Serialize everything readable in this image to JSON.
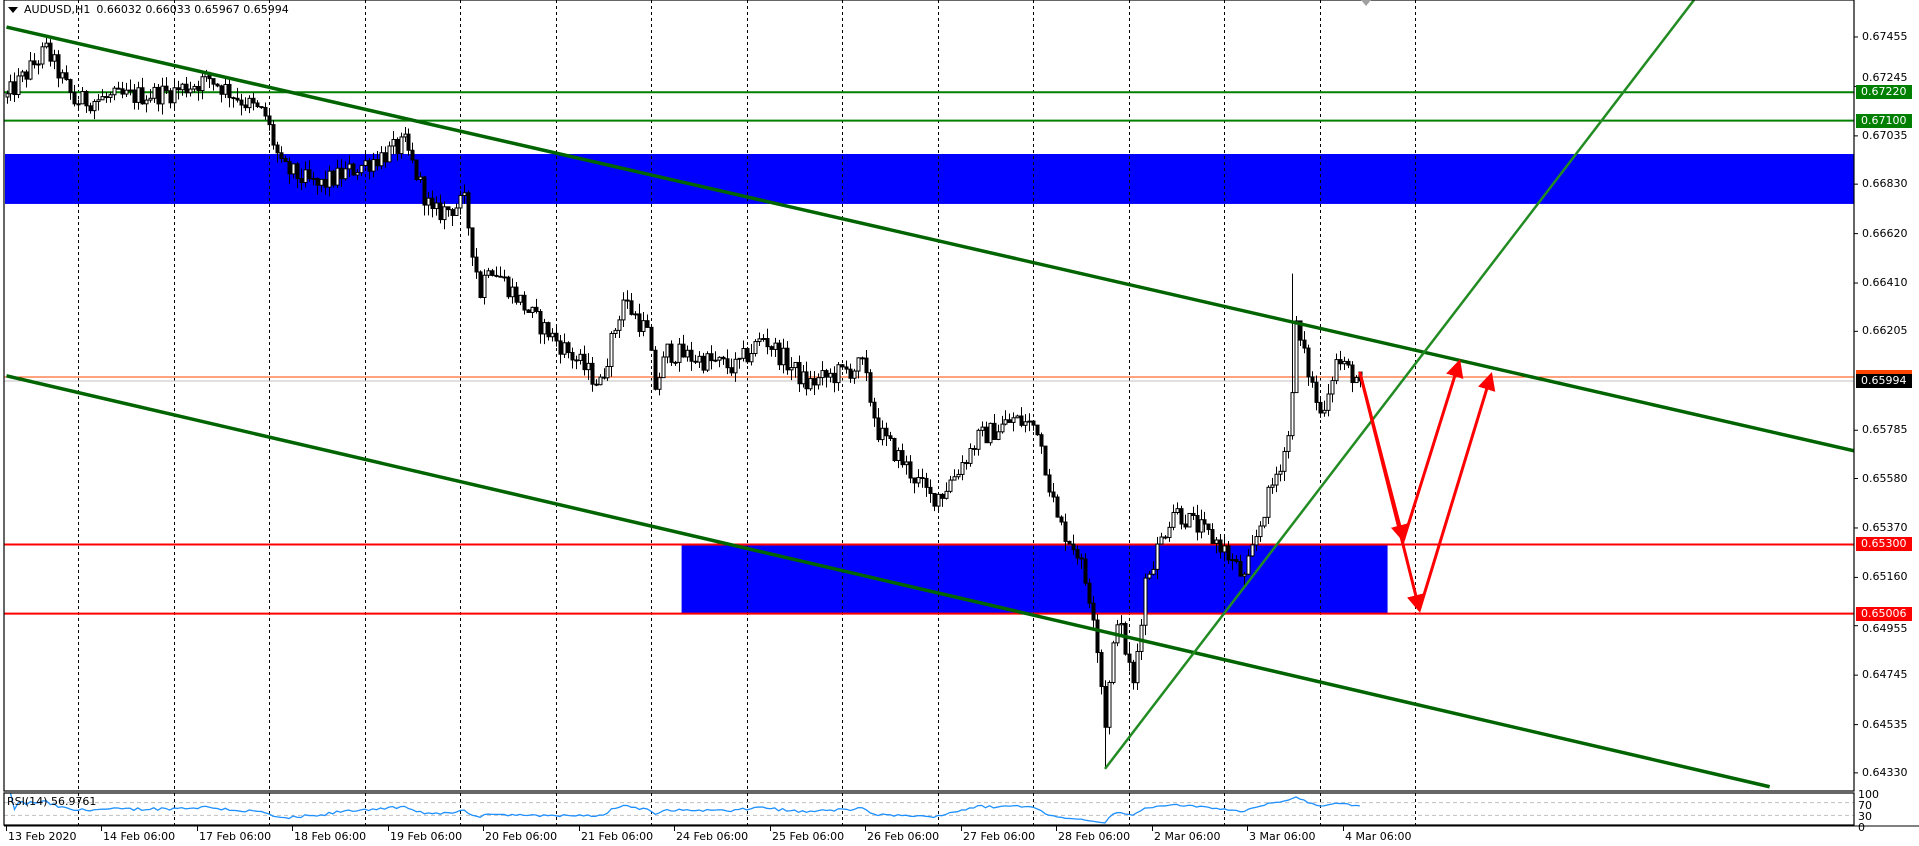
{
  "header": {
    "symbol": "AUDUSD,H1",
    "ohlc": "0.66032 0.66033 0.65967 0.65994"
  },
  "colors": {
    "background": "#ffffff",
    "zone": "#0000ff",
    "channel": "#006400",
    "uptrend": "#228b22",
    "support": "#ff0000",
    "resistance": "#008000",
    "ask": "#ff4500",
    "bid": "#c0c0c0",
    "rsi": "#1e90ff",
    "arrows": "#ff0000"
  },
  "price_axis": {
    "ticks": [
      "0.67455",
      "0.67245",
      "0.67035",
      "0.66830",
      "0.66620",
      "0.66410",
      "0.66205",
      "0.65785",
      "0.65580",
      "0.65370",
      "0.65160",
      "0.64955",
      "0.64745",
      "0.64535",
      "0.64330"
    ]
  },
  "levels": [
    {
      "price": 0.6722,
      "label": "0.67220",
      "color": "#008000"
    },
    {
      "price": 0.671,
      "label": "0.67100",
      "color": "#008000"
    },
    {
      "price": 0.653,
      "label": "0.65300",
      "color": "#ff0000"
    },
    {
      "price": 0.65006,
      "label": "0.65006",
      "color": "#ff0000"
    }
  ],
  "ask_line": {
    "price": 0.66011
  },
  "current_price": {
    "price": 0.65994,
    "label": "0.65994"
  },
  "zones": [
    {
      "from": "13 Feb 06:00",
      "to": "edge",
      "high": 0.66958,
      "low": 0.66746
    },
    {
      "from": "24 Feb 08:00",
      "to": "4 Mar 17:00",
      "high": 0.653,
      "low": 0.65006
    }
  ],
  "trendlines": [
    {
      "name": "upper-channel",
      "p1": [
        "13 Feb 06:00",
        0.67497
      ],
      "p2": [
        "3 Mar 18:00",
        0.66241
      ],
      "ray": true,
      "color": "#006400"
    },
    {
      "name": "lower-channel",
      "p1": [
        "13 Feb 06:00",
        0.66016
      ],
      "p2": [
        "10 Mar 17:00",
        0.64271
      ],
      "ray": false,
      "color": "#006400"
    },
    {
      "name": "uptrend",
      "p1": [
        "28 Feb 18:00",
        0.64347
      ],
      "p2": [
        "9 Mar 22:00",
        0.67612
      ],
      "ray": true,
      "color": "#228b22"
    }
  ],
  "arrows": [
    {
      "from": [
        "4 Mar 10:00",
        0.66033
      ],
      "to": [
        "4 Mar 21:00",
        0.65319
      ]
    },
    {
      "from": [
        "4 Mar 21:00",
        0.65319
      ],
      "to": [
        "5 Mar 11:00",
        0.66075
      ]
    },
    {
      "from": [
        "4 Mar 10:00",
        0.66033
      ],
      "to": [
        "5 Mar 01:00",
        0.65022
      ]
    },
    {
      "from": [
        "5 Mar 01:00",
        0.65022
      ],
      "to": [
        "5 Mar 19:00",
        0.6602
      ]
    }
  ],
  "rsi": {
    "label": "RSI(14) 56.9761",
    "period": 14,
    "levels": {
      "top": "100",
      "upper": "70",
      "lower": "30",
      "bottom": "0"
    }
  },
  "time_labels": [
    "13 Feb 2020",
    "14 Feb 06:00",
    "17 Feb 06:00",
    "18 Feb 06:00",
    "19 Feb 06:00",
    "20 Feb 06:00",
    "21 Feb 06:00",
    "24 Feb 06:00",
    "25 Feb 06:00",
    "26 Feb 06:00",
    "27 Feb 06:00",
    "28 Feb 06:00",
    "2 Mar 06:00",
    "3 Mar 06:00",
    "4 Mar 06:00"
  ],
  "chart_data": {
    "type": "candlestick",
    "symbol": "AUDUSD",
    "timeframe": "H1",
    "ylim": [
      0.64253,
      0.67612
    ],
    "last_bar": {
      "open": 0.66032,
      "high": 0.66033,
      "low": 0.65967,
      "close": 0.65994
    },
    "path": [
      [
        "13 Feb 06:00",
        0.672
      ],
      [
        "13 Feb 16:00",
        0.674
      ],
      [
        "13 Feb 23:00",
        0.6718
      ],
      [
        "14 Feb 23:00",
        0.6722
      ],
      [
        "17 Feb 09:00",
        0.6728
      ],
      [
        "17 Feb 23:00",
        0.6712
      ],
      [
        "18 Feb 03:00",
        0.669
      ],
      [
        "18 Feb 12:00",
        0.6682
      ],
      [
        "19 Feb 10:00",
        0.67
      ],
      [
        "19 Feb 17:00",
        0.667
      ],
      [
        "20 Feb 01:00",
        0.6675
      ],
      [
        "20 Feb 05:00",
        0.6637
      ],
      [
        "20 Feb 07:00",
        0.665
      ],
      [
        "20 Feb 19:00",
        0.6625
      ],
      [
        "21 Feb 04:00",
        0.661
      ],
      [
        "21 Feb 11:00",
        0.6598
      ],
      [
        "21 Feb 17:00",
        0.6634
      ],
      [
        "21 Feb 23:00",
        0.662
      ],
      [
        "24 Feb 01:00",
        0.6597
      ],
      [
        "24 Feb 04:00",
        0.6612
      ],
      [
        "24 Feb 21:00",
        0.6605
      ],
      [
        "25 Feb 04:00",
        0.6618
      ],
      [
        "25 Feb 15:00",
        0.6598
      ],
      [
        "26 Feb 05:00",
        0.6606
      ],
      [
        "26 Feb 09:00",
        0.6578
      ],
      [
        "26 Feb 22:00",
        0.655
      ],
      [
        "27 Feb 01:00",
        0.6552
      ],
      [
        "27 Feb 10:00",
        0.6575
      ],
      [
        "27 Feb 19:00",
        0.6583
      ],
      [
        "28 Feb 01:00",
        0.658
      ],
      [
        "28 Feb 06:00",
        0.654
      ],
      [
        "28 Feb 11:00",
        0.6527
      ],
      [
        "28 Feb 15:00",
        0.6502
      ],
      [
        "28 Feb 18:00",
        0.6455
      ],
      [
        "28 Feb 21:00",
        0.65
      ],
      [
        "2 Mar 01:00",
        0.647
      ],
      [
        "2 Mar 04:00",
        0.6515
      ],
      [
        "2 Mar 11:00",
        0.6545
      ],
      [
        "2 Mar 23:00",
        0.653
      ],
      [
        "3 Mar 05:00",
        0.6515
      ],
      [
        "3 Mar 10:00",
        0.6545
      ],
      [
        "3 Mar 16:00",
        0.6575
      ],
      [
        "3 Mar 18:00",
        0.6622
      ],
      [
        "4 Mar 00:00",
        0.6585
      ],
      [
        "4 Mar 04:00",
        0.6608
      ],
      [
        "4 Mar 10:00",
        0.65994
      ]
    ],
    "extreme_wicks": [
      {
        "time": "28 Feb 18:00",
        "low": 0.6435
      },
      {
        "time": "3 Mar 17:00",
        "high": 0.6645
      },
      {
        "time": "13 Feb 16:00",
        "high": 0.6746
      }
    ]
  }
}
